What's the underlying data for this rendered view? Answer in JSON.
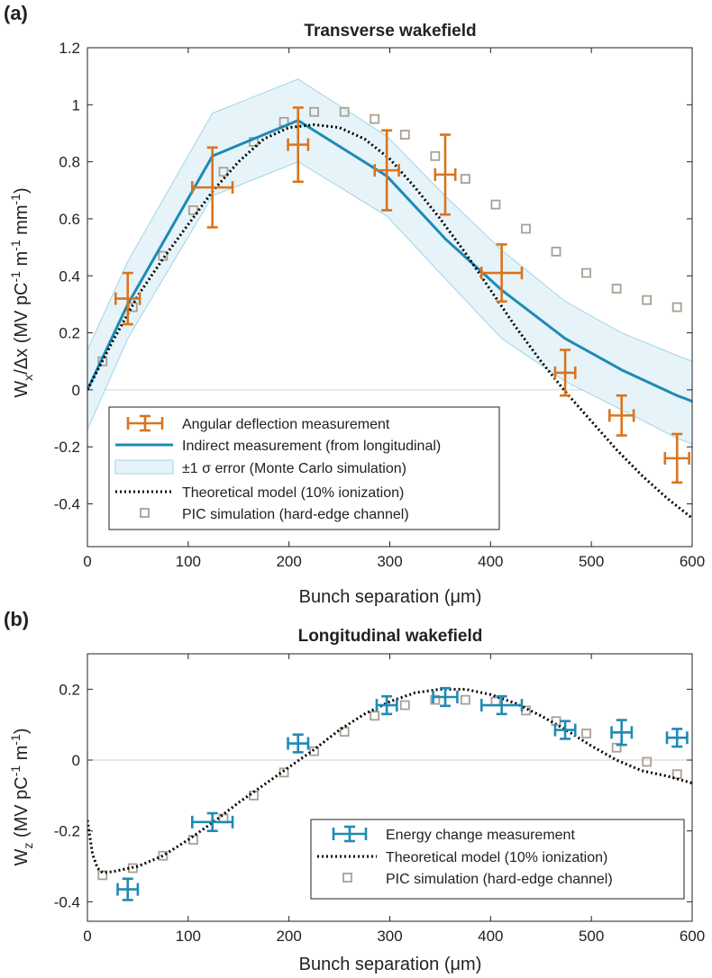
{
  "chart_data": [
    {
      "panel_label": "(a)",
      "type": "line",
      "title": "Transverse wakefield",
      "xlabel": "Bunch separation (μm)",
      "ylabel_parts": {
        "w": "W",
        "sub": "x",
        "mid": "/Δx (MV pC",
        "sup1": "-1",
        "mid2": " m",
        "sup2": "-1",
        "mid3": " mm",
        "sup3": "-1",
        "end": ")"
      },
      "xlim": [
        0,
        600
      ],
      "ylim": [
        -0.55,
        1.2
      ],
      "xticks": [
        0,
        100,
        200,
        300,
        400,
        500,
        600
      ],
      "xtick_labels": [
        "0",
        "100",
        "200",
        "300",
        "400",
        "500",
        "600"
      ],
      "yticks": [
        -0.4,
        -0.2,
        0,
        0.2,
        0.4,
        0.6,
        0.8,
        1,
        1.2
      ],
      "ytick_labels": [
        "-0.4",
        "-0.2",
        "0",
        "0.2",
        "0.4",
        "0.6",
        "0.8",
        "1",
        "1.2"
      ],
      "legend": [
        "Angular deflection measurement",
        "Indirect measurement (from longitudinal)",
        "±1 σ error (Monte Carlo simulation)",
        "Theoretical model (10% ionization)",
        "PIC simulation (hard-edge channel)"
      ],
      "measurement": [
        {
          "x": 40,
          "y": 0.32,
          "xerr": 12,
          "yerr": 0.09
        },
        {
          "x": 124,
          "y": 0.71,
          "xerr": 20,
          "yerr": 0.14
        },
        {
          "x": 209,
          "y": 0.86,
          "xerr": 10,
          "yerr": 0.13
        },
        {
          "x": 297,
          "y": 0.77,
          "xerr": 12,
          "yerr": 0.14
        },
        {
          "x": 355,
          "y": 0.755,
          "xerr": 10,
          "yerr": 0.14
        },
        {
          "x": 411,
          "y": 0.41,
          "xerr": 20,
          "yerr": 0.1
        },
        {
          "x": 474,
          "y": 0.06,
          "xerr": 10,
          "yerr": 0.08
        },
        {
          "x": 530,
          "y": -0.09,
          "xerr": 12,
          "yerr": 0.07
        },
        {
          "x": 585,
          "y": -0.24,
          "xerr": 12,
          "yerr": 0.085
        }
      ],
      "indirect": {
        "x": [
          0,
          40,
          124,
          209,
          297,
          355,
          411,
          474,
          530,
          585,
          600
        ],
        "y": [
          0.0,
          0.3,
          0.82,
          0.945,
          0.75,
          0.53,
          0.35,
          0.18,
          0.07,
          -0.02,
          -0.04
        ]
      },
      "band_upper": [
        0.14,
        0.45,
        0.97,
        1.09,
        0.89,
        0.68,
        0.49,
        0.31,
        0.2,
        0.12,
        0.1
      ],
      "band_lower": [
        -0.14,
        0.18,
        0.68,
        0.8,
        0.61,
        0.39,
        0.18,
        0.03,
        -0.07,
        -0.17,
        -0.19
      ],
      "theory": {
        "x": [
          0,
          25,
          50,
          75,
          100,
          125,
          150,
          175,
          200,
          225,
          250,
          275,
          300,
          325,
          350,
          375,
          400,
          425,
          450,
          475,
          500,
          525,
          550,
          575,
          600
        ],
        "y": [
          0.0,
          0.17,
          0.33,
          0.46,
          0.58,
          0.7,
          0.8,
          0.88,
          0.92,
          0.93,
          0.92,
          0.88,
          0.81,
          0.71,
          0.6,
          0.48,
          0.35,
          0.22,
          0.1,
          -0.01,
          -0.11,
          -0.21,
          -0.3,
          -0.38,
          -0.45
        ]
      },
      "pic": {
        "x": [
          15,
          45,
          75,
          105,
          135,
          165,
          195,
          225,
          255,
          285,
          315,
          345,
          375,
          405,
          435,
          465,
          495,
          525,
          555,
          585
        ],
        "y": [
          0.1,
          0.29,
          0.47,
          0.63,
          0.765,
          0.87,
          0.94,
          0.975,
          0.975,
          0.95,
          0.895,
          0.82,
          0.74,
          0.65,
          0.565,
          0.485,
          0.41,
          0.355,
          0.315,
          0.29
        ]
      }
    },
    {
      "panel_label": "(b)",
      "type": "line",
      "title": "Longitudinal wakefield",
      "xlabel": "Bunch separation (μm)",
      "ylabel_parts": {
        "w": "W",
        "sub": "z",
        "mid": " (MV pC",
        "sup1": "-1",
        "mid2": " m",
        "sup2": "-1",
        "end": ")"
      },
      "xlim": [
        0,
        600
      ],
      "ylim": [
        -0.455,
        0.3
      ],
      "xticks": [
        0,
        100,
        200,
        300,
        400,
        500,
        600
      ],
      "xtick_labels": [
        "0",
        "100",
        "200",
        "300",
        "400",
        "500",
        "600"
      ],
      "yticks": [
        -0.4,
        -0.2,
        0,
        0.2
      ],
      "ytick_labels": [
        "-0.4",
        "-0.2",
        "0",
        "0.2"
      ],
      "legend": [
        "Energy change measurement",
        "Theoretical model (10% ionization)",
        "PIC simulation (hard-edge channel)"
      ],
      "measurement": [
        {
          "x": 40,
          "y": -0.365,
          "xerr": 10,
          "yerr": 0.03
        },
        {
          "x": 124,
          "y": -0.175,
          "xerr": 20,
          "yerr": 0.025
        },
        {
          "x": 209,
          "y": 0.047,
          "xerr": 10,
          "yerr": 0.025
        },
        {
          "x": 297,
          "y": 0.155,
          "xerr": 10,
          "yerr": 0.025
        },
        {
          "x": 355,
          "y": 0.178,
          "xerr": 12,
          "yerr": 0.025
        },
        {
          "x": 411,
          "y": 0.155,
          "xerr": 20,
          "yerr": 0.025
        },
        {
          "x": 474,
          "y": 0.085,
          "xerr": 10,
          "yerr": 0.025
        },
        {
          "x": 530,
          "y": 0.078,
          "xerr": 10,
          "yerr": 0.035
        },
        {
          "x": 585,
          "y": 0.063,
          "xerr": 10,
          "yerr": 0.025
        }
      ],
      "theory": {
        "x": [
          0,
          5,
          10,
          15,
          25,
          50,
          75,
          100,
          125,
          150,
          175,
          200,
          225,
          250,
          275,
          300,
          325,
          350,
          375,
          400,
          425,
          450,
          475,
          500,
          525,
          550,
          575,
          600
        ],
        "y": [
          -0.17,
          -0.265,
          -0.305,
          -0.318,
          -0.315,
          -0.3,
          -0.27,
          -0.225,
          -0.175,
          -0.12,
          -0.07,
          -0.02,
          0.03,
          0.085,
          0.13,
          0.165,
          0.19,
          0.2,
          0.2,
          0.185,
          0.16,
          0.125,
          0.085,
          0.04,
          0.0,
          -0.03,
          -0.045,
          -0.065
        ]
      },
      "pic": {
        "x": [
          15,
          45,
          75,
          105,
          135,
          165,
          195,
          225,
          255,
          285,
          315,
          345,
          375,
          405,
          435,
          465,
          495,
          525,
          555,
          585
        ],
        "y": [
          -0.325,
          -0.305,
          -0.27,
          -0.225,
          -0.165,
          -0.1,
          -0.035,
          0.025,
          0.08,
          0.125,
          0.155,
          0.17,
          0.17,
          0.165,
          0.14,
          0.11,
          0.075,
          0.035,
          -0.005,
          -0.04
        ]
      }
    }
  ],
  "colors": {
    "measurement_a": "#d9741e",
    "indirect": "#1f8ab5",
    "band_fill": "#e6f4fa",
    "band_edge": "#9ed4ea",
    "measurement_b": "#1f8ab5",
    "theory": "#000000",
    "pic": "#a9a094",
    "zero_line": "#d0d0d0"
  }
}
